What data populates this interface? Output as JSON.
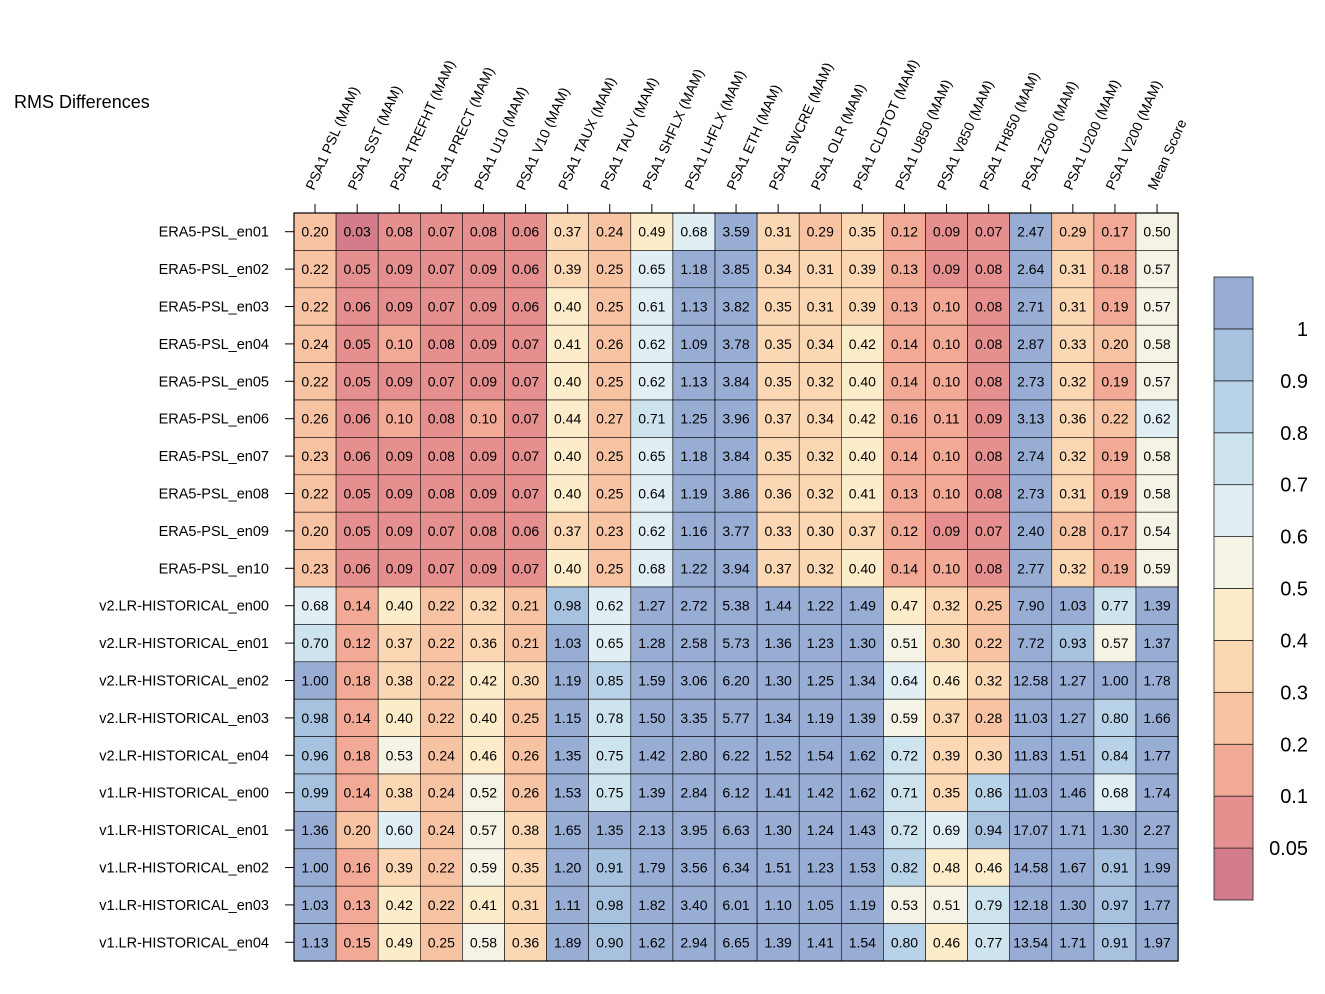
{
  "chart_data": {
    "type": "heatmap",
    "title": "RMS Differences",
    "columns": [
      "PSA1 PSL (MAM)",
      "PSA1 SST (MAM)",
      "PSA1 TREFHT (MAM)",
      "PSA1 PRECT (MAM)",
      "PSA1 U10 (MAM)",
      "PSA1 V10 (MAM)",
      "PSA1 TAUX (MAM)",
      "PSA1 TAUY (MAM)",
      "PSA1 SHFLX (MAM)",
      "PSA1 LHFLX (MAM)",
      "PSA1 ETH (MAM)",
      "PSA1 SWCRE (MAM)",
      "PSA1 OLR (MAM)",
      "PSA1 CLDTOT (MAM)",
      "PSA1 U850 (MAM)",
      "PSA1 V850 (MAM)",
      "PSA1 TH850 (MAM)",
      "PSA1 Z500 (MAM)",
      "PSA1 U200 (MAM)",
      "PSA1 V200 (MAM)",
      "Mean Score"
    ],
    "rows": [
      "ERA5-PSL_en01",
      "ERA5-PSL_en02",
      "ERA5-PSL_en03",
      "ERA5-PSL_en04",
      "ERA5-PSL_en05",
      "ERA5-PSL_en06",
      "ERA5-PSL_en07",
      "ERA5-PSL_en08",
      "ERA5-PSL_en09",
      "ERA5-PSL_en10",
      "v2.LR-HISTORICAL_en00",
      "v2.LR-HISTORICAL_en01",
      "v2.LR-HISTORICAL_en02",
      "v2.LR-HISTORICAL_en03",
      "v2.LR-HISTORICAL_en04",
      "v1.LR-HISTORICAL_en00",
      "v1.LR-HISTORICAL_en01",
      "v1.LR-HISTORICAL_en02",
      "v1.LR-HISTORICAL_en03",
      "v1.LR-HISTORICAL_en04"
    ],
    "values": [
      [
        "0.20",
        "0.03",
        "0.08",
        "0.07",
        "0.08",
        "0.06",
        "0.37",
        "0.24",
        "0.49",
        "0.68",
        "3.59",
        "0.31",
        "0.29",
        "0.35",
        "0.12",
        "0.09",
        "0.07",
        "2.47",
        "0.29",
        "0.17",
        "0.50"
      ],
      [
        "0.22",
        "0.05",
        "0.09",
        "0.07",
        "0.09",
        "0.06",
        "0.39",
        "0.25",
        "0.65",
        "1.18",
        "3.85",
        "0.34",
        "0.31",
        "0.39",
        "0.13",
        "0.09",
        "0.08",
        "2.64",
        "0.31",
        "0.18",
        "0.57"
      ],
      [
        "0.22",
        "0.06",
        "0.09",
        "0.07",
        "0.09",
        "0.06",
        "0.40",
        "0.25",
        "0.61",
        "1.13",
        "3.82",
        "0.35",
        "0.31",
        "0.39",
        "0.13",
        "0.10",
        "0.08",
        "2.71",
        "0.31",
        "0.19",
        "0.57"
      ],
      [
        "0.24",
        "0.05",
        "0.10",
        "0.08",
        "0.09",
        "0.07",
        "0.41",
        "0.26",
        "0.62",
        "1.09",
        "3.78",
        "0.35",
        "0.34",
        "0.42",
        "0.14",
        "0.10",
        "0.08",
        "2.87",
        "0.33",
        "0.20",
        "0.58"
      ],
      [
        "0.22",
        "0.05",
        "0.09",
        "0.07",
        "0.09",
        "0.07",
        "0.40",
        "0.25",
        "0.62",
        "1.13",
        "3.84",
        "0.35",
        "0.32",
        "0.40",
        "0.14",
        "0.10",
        "0.08",
        "2.73",
        "0.32",
        "0.19",
        "0.57"
      ],
      [
        "0.26",
        "0.06",
        "0.10",
        "0.08",
        "0.10",
        "0.07",
        "0.44",
        "0.27",
        "0.71",
        "1.25",
        "3.96",
        "0.37",
        "0.34",
        "0.42",
        "0.16",
        "0.11",
        "0.09",
        "3.13",
        "0.36",
        "0.22",
        "0.62"
      ],
      [
        "0.23",
        "0.06",
        "0.09",
        "0.08",
        "0.09",
        "0.07",
        "0.40",
        "0.25",
        "0.65",
        "1.18",
        "3.84",
        "0.35",
        "0.32",
        "0.40",
        "0.14",
        "0.10",
        "0.08",
        "2.74",
        "0.32",
        "0.19",
        "0.58"
      ],
      [
        "0.22",
        "0.05",
        "0.09",
        "0.08",
        "0.09",
        "0.07",
        "0.40",
        "0.25",
        "0.64",
        "1.19",
        "3.86",
        "0.36",
        "0.32",
        "0.41",
        "0.13",
        "0.10",
        "0.08",
        "2.73",
        "0.31",
        "0.19",
        "0.58"
      ],
      [
        "0.20",
        "0.05",
        "0.09",
        "0.07",
        "0.08",
        "0.06",
        "0.37",
        "0.23",
        "0.62",
        "1.16",
        "3.77",
        "0.33",
        "0.30",
        "0.37",
        "0.12",
        "0.09",
        "0.07",
        "2.40",
        "0.28",
        "0.17",
        "0.54"
      ],
      [
        "0.23",
        "0.06",
        "0.09",
        "0.07",
        "0.09",
        "0.07",
        "0.40",
        "0.25",
        "0.68",
        "1.22",
        "3.94",
        "0.37",
        "0.32",
        "0.40",
        "0.14",
        "0.10",
        "0.08",
        "2.77",
        "0.32",
        "0.19",
        "0.59"
      ],
      [
        "0.68",
        "0.14",
        "0.40",
        "0.22",
        "0.32",
        "0.21",
        "0.98",
        "0.62",
        "1.27",
        "2.72",
        "5.38",
        "1.44",
        "1.22",
        "1.49",
        "0.47",
        "0.32",
        "0.25",
        "7.90",
        "1.03",
        "0.77",
        "1.39"
      ],
      [
        "0.70",
        "0.12",
        "0.37",
        "0.22",
        "0.36",
        "0.21",
        "1.03",
        "0.65",
        "1.28",
        "2.58",
        "5.73",
        "1.36",
        "1.23",
        "1.30",
        "0.51",
        "0.30",
        "0.22",
        "7.72",
        "0.93",
        "0.57",
        "1.37"
      ],
      [
        "1.00",
        "0.18",
        "0.38",
        "0.22",
        "0.42",
        "0.30",
        "1.19",
        "0.85",
        "1.59",
        "3.06",
        "6.20",
        "1.30",
        "1.25",
        "1.34",
        "0.64",
        "0.46",
        "0.32",
        "12.58",
        "1.27",
        "1.00",
        "1.78"
      ],
      [
        "0.98",
        "0.14",
        "0.40",
        "0.22",
        "0.40",
        "0.25",
        "1.15",
        "0.78",
        "1.50",
        "3.35",
        "5.77",
        "1.34",
        "1.19",
        "1.39",
        "0.59",
        "0.37",
        "0.28",
        "11.03",
        "1.27",
        "0.80",
        "1.66"
      ],
      [
        "0.96",
        "0.18",
        "0.53",
        "0.24",
        "0.46",
        "0.26",
        "1.35",
        "0.75",
        "1.42",
        "2.80",
        "6.22",
        "1.52",
        "1.54",
        "1.62",
        "0.72",
        "0.39",
        "0.30",
        "11.83",
        "1.51",
        "0.84",
        "1.77"
      ],
      [
        "0.99",
        "0.14",
        "0.38",
        "0.24",
        "0.52",
        "0.26",
        "1.53",
        "0.75",
        "1.39",
        "2.84",
        "6.12",
        "1.41",
        "1.42",
        "1.62",
        "0.71",
        "0.35",
        "0.86",
        "11.03",
        "1.46",
        "0.68",
        "1.74"
      ],
      [
        "1.36",
        "0.20",
        "0.60",
        "0.24",
        "0.57",
        "0.38",
        "1.65",
        "1.35",
        "2.13",
        "3.95",
        "6.63",
        "1.30",
        "1.24",
        "1.43",
        "0.72",
        "0.69",
        "0.94",
        "17.07",
        "1.71",
        "1.30",
        "2.27"
      ],
      [
        "1.00",
        "0.16",
        "0.39",
        "0.22",
        "0.59",
        "0.35",
        "1.20",
        "0.91",
        "1.79",
        "3.56",
        "6.34",
        "1.51",
        "1.23",
        "1.53",
        "0.82",
        "0.48",
        "0.46",
        "14.58",
        "1.67",
        "0.91",
        "1.99"
      ],
      [
        "1.03",
        "0.13",
        "0.42",
        "0.22",
        "0.41",
        "0.31",
        "1.11",
        "0.98",
        "1.82",
        "3.40",
        "6.01",
        "1.10",
        "1.05",
        "1.19",
        "0.53",
        "0.51",
        "0.79",
        "12.18",
        "1.30",
        "0.97",
        "1.77"
      ],
      [
        "1.13",
        "0.15",
        "0.49",
        "0.25",
        "0.58",
        "0.36",
        "1.89",
        "0.90",
        "1.62",
        "2.94",
        "6.65",
        "1.39",
        "1.41",
        "1.54",
        "0.80",
        "0.46",
        "0.77",
        "13.54",
        "1.71",
        "0.91",
        "1.97"
      ]
    ],
    "colorbar": {
      "bounds": [
        0,
        0.05,
        0.1,
        0.2,
        0.3,
        0.4,
        0.5,
        0.6,
        0.7,
        0.8,
        0.9,
        1
      ],
      "colors": [
        "#d37c8b",
        "#e58f8e",
        "#f2a995",
        "#f8c3a3",
        "#fbd8b3",
        "#fdecc9",
        "#f4f3e6",
        "#e1eef3",
        "#cde3ee",
        "#b8d3e7",
        "#a6c2df",
        "#98add4"
      ],
      "tick_labels": [
        "0.05",
        "0.1",
        "0.2",
        "0.3",
        "0.4",
        "0.5",
        "0.6",
        "0.7",
        "0.8",
        "0.9",
        "1"
      ]
    }
  }
}
